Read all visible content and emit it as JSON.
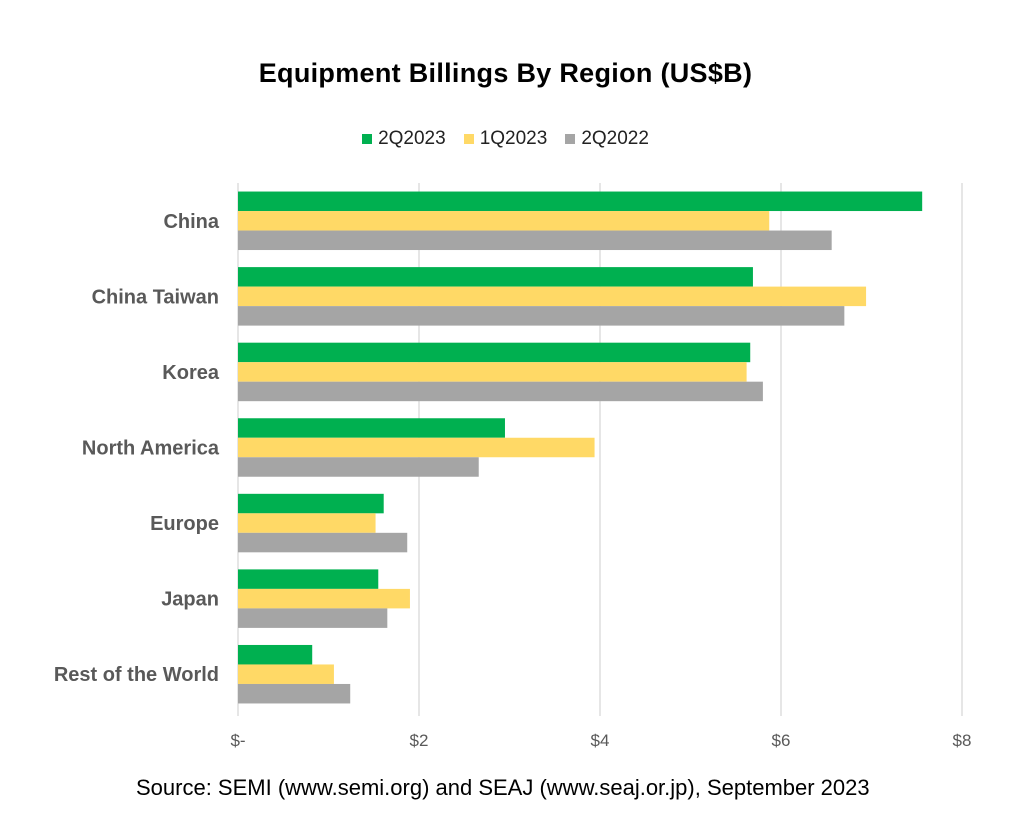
{
  "chart_data": {
    "type": "bar",
    "orientation": "horizontal",
    "title": "Equipment Billings By Region (US$B)",
    "categories": [
      "China",
      "China Taiwan",
      "Korea",
      "North America",
      "Europe",
      "Japan",
      "Rest of the World"
    ],
    "series": [
      {
        "name": "2Q2023",
        "color": "#00B050",
        "values": [
          7.56,
          5.69,
          5.66,
          2.95,
          1.61,
          1.55,
          0.82
        ]
      },
      {
        "name": "1Q2023",
        "color": "#FFD966",
        "values": [
          5.87,
          6.94,
          5.62,
          3.94,
          1.52,
          1.9,
          1.06
        ]
      },
      {
        "name": "2Q2022",
        "color": "#A5A5A5",
        "values": [
          6.56,
          6.7,
          5.8,
          2.66,
          1.87,
          1.65,
          1.24
        ]
      }
    ],
    "xlim": [
      0,
      8
    ],
    "xticks": [
      {
        "value": 0,
        "label": "$-"
      },
      {
        "value": 2,
        "label": "$2"
      },
      {
        "value": 4,
        "label": "$4"
      },
      {
        "value": 6,
        "label": "$6"
      },
      {
        "value": 8,
        "label": "$8"
      }
    ],
    "grid": true,
    "legend_position": "top"
  },
  "source": "Source: SEMI (www.semi.org) and SEAJ (www.seaj.or.jp), September 2023"
}
